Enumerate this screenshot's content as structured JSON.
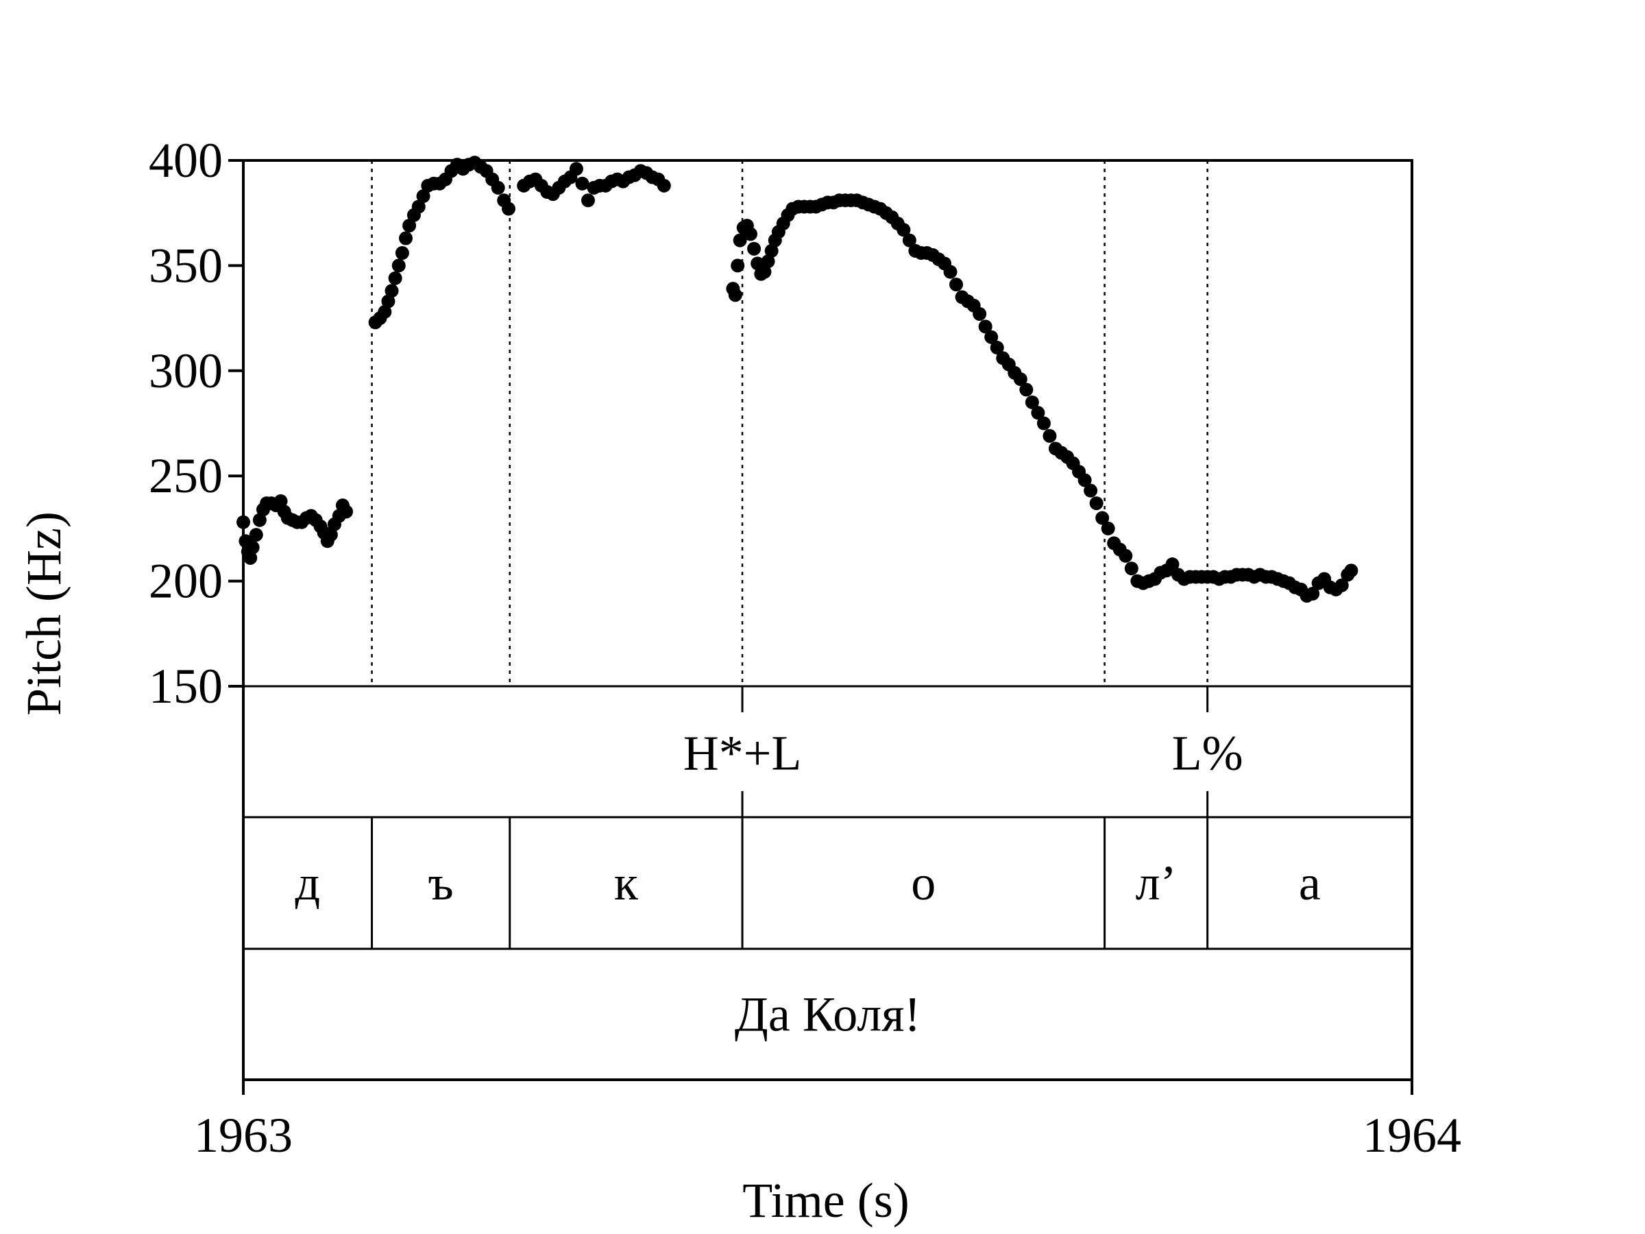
{
  "chart_data": {
    "type": "scatter",
    "ylabel": "Pitch (Hz)",
    "xlabel": "Time (s)",
    "ylim": [
      150,
      400
    ],
    "yticks": [
      "400",
      "350",
      "300",
      "250",
      "200",
      "150"
    ],
    "xlim": [
      1963,
      1964
    ],
    "xticks": [
      "1963",
      "1964"
    ],
    "boundaries": [
      1963.11,
      1963.228,
      1963.427,
      1963.737,
      1963.825
    ],
    "tones": [
      {
        "label": "H*+L",
        "time": 1963.427
      },
      {
        "label": "L%",
        "time": 1963.825
      }
    ],
    "segments": [
      {
        "label": "д",
        "start": 1963.0,
        "end": 1963.11
      },
      {
        "label": "ъ",
        "start": 1963.11,
        "end": 1963.228
      },
      {
        "label": "к",
        "start": 1963.228,
        "end": 1963.427
      },
      {
        "label": "о",
        "start": 1963.427,
        "end": 1963.737
      },
      {
        "label": "л’",
        "start": 1963.737,
        "end": 1963.825
      },
      {
        "label": "а",
        "start": 1963.825,
        "end": 1964.0
      }
    ],
    "words": [
      {
        "label": "Да Коля!",
        "start": 1963.0,
        "end": 1964.0
      }
    ],
    "series": [
      {
        "values": [
          [
            1963.0,
            228
          ],
          [
            1963.002,
            219
          ],
          [
            1963.004,
            214
          ],
          [
            1963.006,
            211
          ],
          [
            1963.008,
            216
          ],
          [
            1963.011,
            222
          ],
          [
            1963.014,
            229
          ],
          [
            1963.017,
            234
          ],
          [
            1963.02,
            237
          ],
          [
            1963.024,
            237
          ],
          [
            1963.028,
            236
          ],
          [
            1963.032,
            238
          ],
          [
            1963.035,
            233
          ],
          [
            1963.038,
            230
          ],
          [
            1963.042,
            229
          ],
          [
            1963.046,
            228
          ],
          [
            1963.05,
            228
          ],
          [
            1963.054,
            230
          ],
          [
            1963.058,
            231
          ],
          [
            1963.062,
            229
          ],
          [
            1963.066,
            226
          ],
          [
            1963.069,
            223
          ],
          [
            1963.072,
            219
          ],
          [
            1963.075,
            222
          ],
          [
            1963.078,
            227
          ],
          [
            1963.082,
            231
          ],
          [
            1963.085,
            236
          ],
          [
            1963.088,
            233
          ],
          [
            1963.113,
            323
          ],
          [
            1963.117,
            325
          ],
          [
            1963.121,
            328
          ],
          [
            1963.124,
            333
          ],
          [
            1963.127,
            338
          ],
          [
            1963.13,
            344
          ],
          [
            1963.133,
            350
          ],
          [
            1963.136,
            356
          ],
          [
            1963.139,
            363
          ],
          [
            1963.142,
            369
          ],
          [
            1963.146,
            374
          ],
          [
            1963.15,
            378
          ],
          [
            1963.154,
            383
          ],
          [
            1963.158,
            388
          ],
          [
            1963.163,
            389
          ],
          [
            1963.168,
            389
          ],
          [
            1963.173,
            391
          ],
          [
            1963.178,
            395
          ],
          [
            1963.183,
            398
          ],
          [
            1963.188,
            396
          ],
          [
            1963.193,
            398
          ],
          [
            1963.198,
            399
          ],
          [
            1963.203,
            397
          ],
          [
            1963.208,
            395
          ],
          [
            1963.213,
            391
          ],
          [
            1963.218,
            387
          ],
          [
            1963.223,
            381
          ],
          [
            1963.227,
            377
          ],
          [
            1963.24,
            388
          ],
          [
            1963.245,
            390
          ],
          [
            1963.25,
            391
          ],
          [
            1963.255,
            388
          ],
          [
            1963.26,
            385
          ],
          [
            1963.265,
            384
          ],
          [
            1963.27,
            387
          ],
          [
            1963.275,
            390
          ],
          [
            1963.28,
            392
          ],
          [
            1963.285,
            396
          ],
          [
            1963.29,
            389
          ],
          [
            1963.295,
            381
          ],
          [
            1963.3,
            387
          ],
          [
            1963.305,
            388
          ],
          [
            1963.31,
            388
          ],
          [
            1963.315,
            390
          ],
          [
            1963.32,
            391
          ],
          [
            1963.325,
            390
          ],
          [
            1963.33,
            392
          ],
          [
            1963.335,
            393
          ],
          [
            1963.34,
            395
          ],
          [
            1963.345,
            394
          ],
          [
            1963.35,
            392
          ],
          [
            1963.355,
            391
          ],
          [
            1963.36,
            388
          ],
          [
            1963.419,
            339
          ],
          [
            1963.421,
            336
          ],
          [
            1963.423,
            350
          ],
          [
            1963.425,
            362
          ],
          [
            1963.428,
            368
          ],
          [
            1963.431,
            369
          ],
          [
            1963.434,
            365
          ],
          [
            1963.437,
            358
          ],
          [
            1963.44,
            351
          ],
          [
            1963.443,
            346
          ],
          [
            1963.446,
            347
          ],
          [
            1963.449,
            352
          ],
          [
            1963.452,
            357
          ],
          [
            1963.455,
            362
          ],
          [
            1963.458,
            366
          ],
          [
            1963.462,
            370
          ],
          [
            1963.466,
            374
          ],
          [
            1963.47,
            377
          ],
          [
            1963.475,
            378
          ],
          [
            1963.48,
            378
          ],
          [
            1963.485,
            378
          ],
          [
            1963.49,
            378
          ],
          [
            1963.495,
            379
          ],
          [
            1963.5,
            380
          ],
          [
            1963.505,
            380
          ],
          [
            1963.51,
            381
          ],
          [
            1963.515,
            381
          ],
          [
            1963.52,
            381
          ],
          [
            1963.525,
            381
          ],
          [
            1963.53,
            380
          ],
          [
            1963.535,
            379
          ],
          [
            1963.54,
            378
          ],
          [
            1963.545,
            377
          ],
          [
            1963.55,
            375
          ],
          [
            1963.555,
            373
          ],
          [
            1963.56,
            370
          ],
          [
            1963.565,
            367
          ],
          [
            1963.57,
            362
          ],
          [
            1963.575,
            357
          ],
          [
            1963.58,
            356
          ],
          [
            1963.585,
            356
          ],
          [
            1963.59,
            355
          ],
          [
            1963.595,
            353
          ],
          [
            1963.6,
            351
          ],
          [
            1963.605,
            347
          ],
          [
            1963.61,
            341
          ],
          [
            1963.615,
            335
          ],
          [
            1963.62,
            333
          ],
          [
            1963.625,
            331
          ],
          [
            1963.63,
            327
          ],
          [
            1963.635,
            321
          ],
          [
            1963.64,
            316
          ],
          [
            1963.645,
            311
          ],
          [
            1963.65,
            306
          ],
          [
            1963.655,
            303
          ],
          [
            1963.66,
            299
          ],
          [
            1963.665,
            296
          ],
          [
            1963.67,
            291
          ],
          [
            1963.675,
            285
          ],
          [
            1963.68,
            280
          ],
          [
            1963.685,
            275
          ],
          [
            1963.69,
            269
          ],
          [
            1963.695,
            263
          ],
          [
            1963.7,
            261
          ],
          [
            1963.705,
            259
          ],
          [
            1963.71,
            256
          ],
          [
            1963.715,
            252
          ],
          [
            1963.72,
            248
          ],
          [
            1963.725,
            243
          ],
          [
            1963.73,
            237
          ],
          [
            1963.735,
            230
          ],
          [
            1963.74,
            225
          ],
          [
            1963.745,
            218
          ],
          [
            1963.75,
            215
          ],
          [
            1963.755,
            212
          ],
          [
            1963.76,
            206
          ],
          [
            1963.765,
            200
          ],
          [
            1963.77,
            199
          ],
          [
            1963.775,
            200
          ],
          [
            1963.78,
            201
          ],
          [
            1963.785,
            204
          ],
          [
            1963.79,
            205
          ],
          [
            1963.795,
            208
          ],
          [
            1963.8,
            203
          ],
          [
            1963.805,
            201
          ],
          [
            1963.81,
            202
          ],
          [
            1963.815,
            202
          ],
          [
            1963.82,
            202
          ],
          [
            1963.825,
            202
          ],
          [
            1963.83,
            202
          ],
          [
            1963.835,
            201
          ],
          [
            1963.84,
            202
          ],
          [
            1963.845,
            202
          ],
          [
            1963.85,
            203
          ],
          [
            1963.855,
            203
          ],
          [
            1963.86,
            203
          ],
          [
            1963.865,
            202
          ],
          [
            1963.87,
            203
          ],
          [
            1963.875,
            202
          ],
          [
            1963.88,
            202
          ],
          [
            1963.885,
            201
          ],
          [
            1963.89,
            200
          ],
          [
            1963.895,
            199
          ],
          [
            1963.9,
            197
          ],
          [
            1963.905,
            196
          ],
          [
            1963.91,
            193
          ],
          [
            1963.915,
            194
          ],
          [
            1963.92,
            199
          ],
          [
            1963.925,
            201
          ],
          [
            1963.93,
            197
          ],
          [
            1963.935,
            196
          ],
          [
            1963.94,
            198
          ],
          [
            1963.945,
            203
          ],
          [
            1963.948,
            205
          ]
        ]
      }
    ]
  }
}
